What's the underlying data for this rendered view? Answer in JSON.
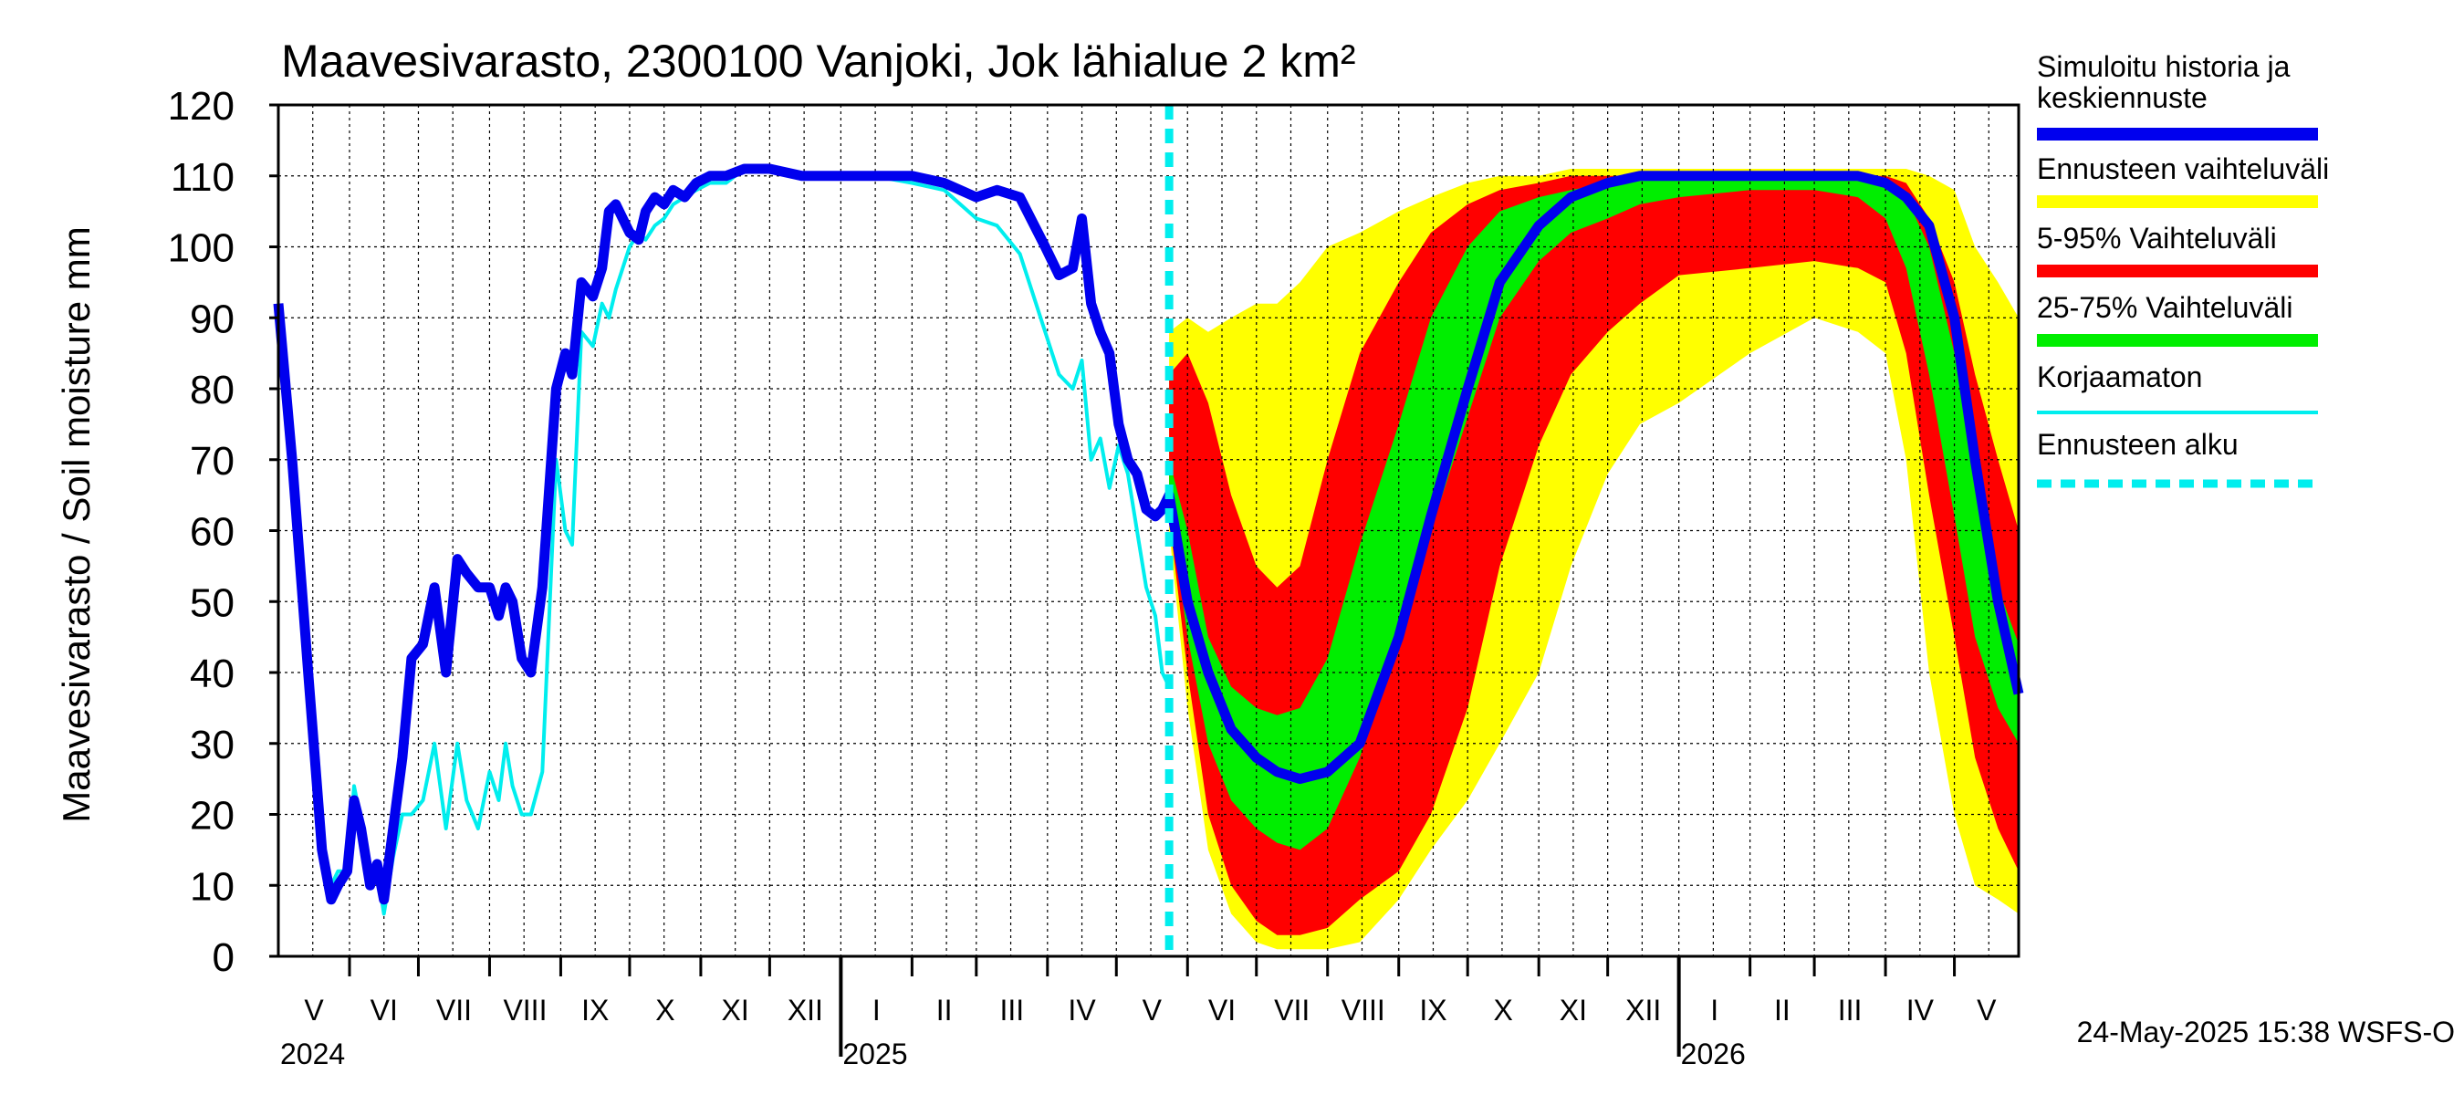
{
  "colors": {
    "median": "#0000ee",
    "range": "#ffff00",
    "p5_95": "#ff0000",
    "p25_75": "#00ee00",
    "uncorrected": "#00eeee",
    "forecast_start": "#00eeee",
    "grid": "#000000"
  },
  "chart_data": {
    "type": "line",
    "title": "Maavesivarasto, 2300100 Vanjoki, Jok lähialue 2 km²",
    "ylabel": "Maavesivarasto / Soil moisture   mm",
    "xlabel": "",
    "ylim": [
      0,
      120
    ],
    "yticks": [
      0,
      10,
      20,
      30,
      40,
      50,
      60,
      70,
      80,
      90,
      100,
      110,
      120
    ],
    "xlim": [
      "2024-05-01",
      "2026-05-29"
    ],
    "grid": true,
    "legend_position": "right",
    "legend": [
      "Simuloitu historia ja keskiennuste",
      "Ennusteen vaihteluväli",
      "5-95% Vaihteluväli",
      "25-75% Vaihteluväli",
      "Korjaamaton",
      "Ennusteen alku"
    ],
    "months": [
      {
        "label": "V",
        "start": "2024-05-01"
      },
      {
        "label": "VI",
        "start": "2024-06-01"
      },
      {
        "label": "VII",
        "start": "2024-07-01"
      },
      {
        "label": "VIII",
        "start": "2024-08-01"
      },
      {
        "label": "IX",
        "start": "2024-09-01"
      },
      {
        "label": "X",
        "start": "2024-10-01"
      },
      {
        "label": "XI",
        "start": "2024-11-01"
      },
      {
        "label": "XII",
        "start": "2024-12-01"
      },
      {
        "label": "I",
        "start": "2025-01-01"
      },
      {
        "label": "II",
        "start": "2025-02-01"
      },
      {
        "label": "III",
        "start": "2025-03-01"
      },
      {
        "label": "IV",
        "start": "2025-04-01"
      },
      {
        "label": "V",
        "start": "2025-05-01"
      },
      {
        "label": "VI",
        "start": "2025-06-01"
      },
      {
        "label": "VII",
        "start": "2025-07-01"
      },
      {
        "label": "VIII",
        "start": "2025-08-01"
      },
      {
        "label": "IX",
        "start": "2025-09-01"
      },
      {
        "label": "X",
        "start": "2025-10-01"
      },
      {
        "label": "XI",
        "start": "2025-11-01"
      },
      {
        "label": "XII",
        "start": "2025-12-01"
      },
      {
        "label": "I",
        "start": "2026-01-01"
      },
      {
        "label": "II",
        "start": "2026-02-01"
      },
      {
        "label": "III",
        "start": "2026-03-01"
      },
      {
        "label": "IV",
        "start": "2026-04-01"
      },
      {
        "label": "V",
        "start": "2026-05-01"
      }
    ],
    "years": [
      {
        "label": "2024",
        "date": "2024-05-01"
      },
      {
        "label": "2025",
        "date": "2025-01-01"
      },
      {
        "label": "2026",
        "date": "2026-01-01"
      }
    ],
    "forecast_start": "2025-05-24",
    "series": [
      {
        "name": "Simuloitu historia ja keskiennuste",
        "x": [
          "2024-05-01",
          "2024-05-07",
          "2024-05-14",
          "2024-05-20",
          "2024-05-24",
          "2024-05-27",
          "2024-05-31",
          "2024-06-03",
          "2024-06-06",
          "2024-06-10",
          "2024-06-13",
          "2024-06-16",
          "2024-06-20",
          "2024-06-24",
          "2024-06-28",
          "2024-07-03",
          "2024-07-08",
          "2024-07-13",
          "2024-07-18",
          "2024-07-22",
          "2024-07-27",
          "2024-08-01",
          "2024-08-05",
          "2024-08-08",
          "2024-08-11",
          "2024-08-15",
          "2024-08-19",
          "2024-08-24",
          "2024-08-30",
          "2024-09-03",
          "2024-09-06",
          "2024-09-10",
          "2024-09-15",
          "2024-09-19",
          "2024-09-22",
          "2024-09-25",
          "2024-10-01",
          "2024-10-05",
          "2024-10-08",
          "2024-10-12",
          "2024-10-16",
          "2024-10-20",
          "2024-10-25",
          "2024-10-30",
          "2024-11-05",
          "2024-11-12",
          "2024-11-20",
          "2024-12-01",
          "2024-12-15",
          "2025-01-01",
          "2025-01-15",
          "2025-02-01",
          "2025-02-15",
          "2025-03-01",
          "2025-03-10",
          "2025-03-20",
          "2025-03-31",
          "2025-04-06",
          "2025-04-12",
          "2025-04-16",
          "2025-04-20",
          "2025-04-24",
          "2025-04-28",
          "2025-05-02",
          "2025-05-06",
          "2025-05-10",
          "2025-05-14",
          "2025-05-18",
          "2025-05-21",
          "2025-05-24",
          "2025-06-01",
          "2025-06-10",
          "2025-06-20",
          "2025-07-01",
          "2025-07-10",
          "2025-07-20",
          "2025-08-01",
          "2025-08-15",
          "2025-09-01",
          "2025-09-15",
          "2025-10-01",
          "2025-10-15",
          "2025-11-01",
          "2025-11-15",
          "2025-12-01",
          "2025-12-15",
          "2026-01-01",
          "2026-02-01",
          "2026-03-01",
          "2026-03-20",
          "2026-04-01",
          "2026-04-10",
          "2026-04-20",
          "2026-05-01",
          "2026-05-10",
          "2026-05-20",
          "2026-05-29"
        ],
        "y": [
          92,
          70,
          40,
          15,
          8,
          10,
          12,
          22,
          18,
          10,
          13,
          8,
          18,
          28,
          42,
          44,
          52,
          40,
          56,
          54,
          52,
          52,
          48,
          52,
          50,
          42,
          40,
          52,
          80,
          85,
          82,
          95,
          93,
          97,
          105,
          106,
          102,
          101,
          105,
          107,
          106,
          108,
          107,
          109,
          110,
          110,
          111,
          111,
          110,
          110,
          110,
          110,
          109,
          107,
          108,
          107,
          100,
          96,
          97,
          104,
          92,
          88,
          85,
          75,
          70,
          68,
          63,
          62,
          63,
          65,
          50,
          40,
          32,
          28,
          26,
          25,
          26,
          30,
          45,
          62,
          80,
          95,
          103,
          107,
          109,
          110,
          110,
          110,
          110,
          110,
          109,
          107,
          103,
          90,
          70,
          50,
          37
        ]
      },
      {
        "name": "Korjaamaton",
        "x": [
          "2024-05-01",
          "2024-05-07",
          "2024-05-14",
          "2024-05-20",
          "2024-05-24",
          "2024-05-27",
          "2024-05-31",
          "2024-06-03",
          "2024-06-06",
          "2024-06-10",
          "2024-06-13",
          "2024-06-16",
          "2024-06-20",
          "2024-06-24",
          "2024-06-28",
          "2024-07-03",
          "2024-07-08",
          "2024-07-13",
          "2024-07-18",
          "2024-07-22",
          "2024-07-27",
          "2024-08-01",
          "2024-08-05",
          "2024-08-08",
          "2024-08-11",
          "2024-08-15",
          "2024-08-19",
          "2024-08-24",
          "2024-08-30",
          "2024-09-03",
          "2024-09-06",
          "2024-09-10",
          "2024-09-15",
          "2024-09-19",
          "2024-09-22",
          "2024-09-25",
          "2024-10-01",
          "2024-10-05",
          "2024-10-08",
          "2024-10-12",
          "2024-10-16",
          "2024-10-20",
          "2024-10-25",
          "2024-10-30",
          "2024-11-05",
          "2024-11-12",
          "2024-11-20",
          "2024-12-01",
          "2024-12-15",
          "2025-01-01",
          "2025-01-15",
          "2025-02-01",
          "2025-02-15",
          "2025-03-01",
          "2025-03-10",
          "2025-03-20",
          "2025-03-31",
          "2025-04-06",
          "2025-04-12",
          "2025-04-16",
          "2025-04-20",
          "2025-04-24",
          "2025-04-28",
          "2025-05-02",
          "2025-05-06",
          "2025-05-10",
          "2025-05-14",
          "2025-05-18",
          "2025-05-21",
          "2025-05-24"
        ],
        "y": [
          92,
          70,
          40,
          15,
          10,
          12,
          12,
          24,
          19,
          10,
          12,
          6,
          14,
          20,
          20,
          22,
          30,
          18,
          30,
          22,
          18,
          26,
          22,
          30,
          24,
          20,
          20,
          26,
          70,
          60,
          58,
          88,
          86,
          92,
          90,
          94,
          100,
          102,
          101,
          103,
          104,
          106,
          107,
          108,
          109,
          109,
          111,
          111,
          110,
          110,
          110,
          109,
          108,
          104,
          103,
          99,
          88,
          82,
          80,
          84,
          70,
          73,
          66,
          72,
          68,
          60,
          52,
          48,
          40,
          38
        ]
      }
    ],
    "bands": [
      {
        "name": "Ennusteen vaihteluväli",
        "x": [
          "2025-05-24",
          "2025-06-01",
          "2025-06-10",
          "2025-06-20",
          "2025-07-01",
          "2025-07-10",
          "2025-07-20",
          "2025-08-01",
          "2025-08-15",
          "2025-09-01",
          "2025-09-15",
          "2025-10-01",
          "2025-10-15",
          "2025-11-01",
          "2025-11-15",
          "2025-12-01",
          "2025-12-15",
          "2026-01-01",
          "2026-02-01",
          "2026-03-01",
          "2026-03-20",
          "2026-04-01",
          "2026-04-10",
          "2026-04-20",
          "2026-05-01",
          "2026-05-10",
          "2026-05-20",
          "2026-05-29"
        ],
        "lower": [
          60,
          35,
          15,
          6,
          2,
          1,
          1,
          1,
          2,
          8,
          15,
          22,
          30,
          40,
          55,
          68,
          75,
          78,
          85,
          90,
          88,
          85,
          70,
          40,
          20,
          10,
          8,
          6
        ],
        "upper": [
          88,
          90,
          88,
          90,
          92,
          92,
          95,
          100,
          102,
          105,
          107,
          109,
          110,
          110,
          111,
          111,
          111,
          111,
          111,
          111,
          111,
          111,
          111,
          110,
          108,
          100,
          95,
          90
        ]
      },
      {
        "name": "5-95% Vaihteluväli",
        "x": [
          "2025-05-24",
          "2025-06-01",
          "2025-06-10",
          "2025-06-20",
          "2025-07-01",
          "2025-07-10",
          "2025-07-20",
          "2025-08-01",
          "2025-08-15",
          "2025-09-01",
          "2025-09-15",
          "2025-10-01",
          "2025-10-15",
          "2025-11-01",
          "2025-11-15",
          "2025-12-01",
          "2025-12-15",
          "2026-01-01",
          "2026-02-01",
          "2026-03-01",
          "2026-03-20",
          "2026-04-01",
          "2026-04-10",
          "2026-04-20",
          "2026-05-01",
          "2026-05-10",
          "2026-05-20",
          "2026-05-29"
        ],
        "lower": [
          62,
          40,
          20,
          10,
          5,
          3,
          3,
          4,
          8,
          12,
          20,
          35,
          55,
          72,
          82,
          88,
          92,
          96,
          97,
          98,
          97,
          95,
          85,
          65,
          45,
          28,
          18,
          12
        ],
        "upper": [
          82,
          85,
          78,
          65,
          55,
          52,
          55,
          70,
          85,
          95,
          102,
          106,
          108,
          109,
          110,
          110,
          110,
          110,
          110,
          110,
          110,
          110,
          109,
          104,
          95,
          82,
          70,
          60
        ]
      },
      {
        "name": "25-75% Vaihteluväli",
        "x": [
          "2025-05-24",
          "2025-06-01",
          "2025-06-10",
          "2025-06-20",
          "2025-07-01",
          "2025-07-10",
          "2025-07-20",
          "2025-08-01",
          "2025-08-15",
          "2025-09-01",
          "2025-09-15",
          "2025-10-01",
          "2025-10-15",
          "2025-11-01",
          "2025-11-15",
          "2025-12-01",
          "2025-12-15",
          "2026-01-01",
          "2026-02-01",
          "2026-03-01",
          "2026-03-20",
          "2026-04-01",
          "2026-04-10",
          "2026-04-20",
          "2026-05-01",
          "2026-05-10",
          "2026-05-20",
          "2026-05-29"
        ],
        "lower": [
          64,
          45,
          30,
          22,
          18,
          16,
          15,
          18,
          28,
          45,
          60,
          76,
          90,
          98,
          102,
          104,
          106,
          107,
          108,
          108,
          107,
          104,
          97,
          82,
          62,
          45,
          35,
          30
        ],
        "upper": [
          70,
          60,
          45,
          38,
          35,
          34,
          35,
          42,
          58,
          75,
          90,
          100,
          105,
          107,
          108,
          109,
          110,
          110,
          110,
          110,
          110,
          109,
          107,
          100,
          85,
          68,
          52,
          44
        ]
      }
    ]
  }
}
